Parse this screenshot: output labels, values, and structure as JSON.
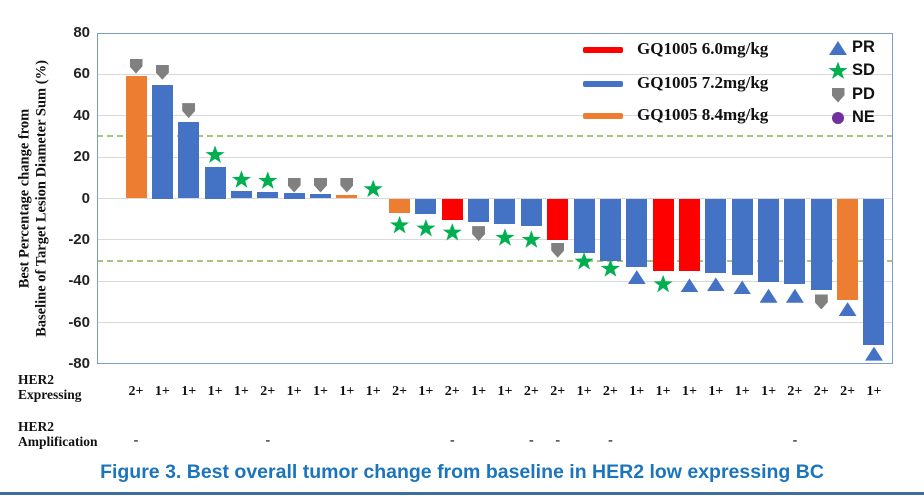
{
  "figure_caption": "Figure 3. Best overall tumor change from baseline in HER2 low expressing BC",
  "y_axis": {
    "title_line1": "Best Percentage change from",
    "title_line2": "Baseline of Target Lesion Diameter Sum (%)",
    "ticks": [
      80,
      60,
      40,
      20,
      0,
      -20,
      -40,
      -60,
      -80
    ],
    "min": -80,
    "max": 80
  },
  "legend": {
    "doses": [
      {
        "label": "GQ1005 6.0mg/kg",
        "color": "#FF0000"
      },
      {
        "label": "GQ1005 7.2mg/kg",
        "color": "#4472C4"
      },
      {
        "label": "GQ1005 8.4mg/kg",
        "color": "#ED7D31"
      }
    ],
    "responses": [
      {
        "label": "PR",
        "marker": "triangle-up",
        "color": "#4472C4"
      },
      {
        "label": "SD",
        "marker": "star",
        "color": "#00B050"
      },
      {
        "label": "PD",
        "marker": "pentagon-down",
        "color": "#808080"
      },
      {
        "label": "NE",
        "marker": "circle",
        "color": "#7030A0"
      }
    ]
  },
  "x_axis_rows": {
    "expressing_header_line1": "HER2",
    "expressing_header_line2": "Expressing",
    "amplification_header_line1": "HER2",
    "amplification_header_line2": "Amplification"
  },
  "styles": {
    "reference_line_color": "#A9C47F",
    "gridline_color": "#D9D9D9",
    "plot_border_color": "#7E9CC9",
    "caption_color": "#1C75BC",
    "divider_color": "#3E6D9E"
  },
  "chart_data": {
    "type": "bar",
    "title": "Best overall tumor change from baseline in HER2 low expressing BC",
    "xlabel": "",
    "ylabel": "Best Percentage change from Baseline of Target Lesion Diameter Sum (%)",
    "ylim": [
      -80,
      80
    ],
    "grid": true,
    "reference_lines": [
      30,
      -30
    ],
    "dose_colors": {
      "6.0mg/kg": "#FF0000",
      "7.2mg/kg": "#4472C4",
      "8.4mg/kg": "#ED7D31"
    },
    "response_markers": {
      "PR": "triangle-up",
      "SD": "star",
      "PD": "pentagon-down",
      "NE": "circle"
    },
    "patients": [
      {
        "her2_expressing": "2+",
        "her2_amplification": "-",
        "dose": "8.4mg/kg",
        "response": "PD",
        "value": 59,
        "marker_value": 64
      },
      {
        "her2_expressing": "1+",
        "her2_amplification": "",
        "dose": "7.2mg/kg",
        "response": "PD",
        "value": 55,
        "marker_value": 61
      },
      {
        "her2_expressing": "1+",
        "her2_amplification": "",
        "dose": "7.2mg/kg",
        "response": "PD",
        "value": 37,
        "marker_value": 42.5
      },
      {
        "her2_expressing": "1+",
        "her2_amplification": "",
        "dose": "7.2mg/kg",
        "response": "SD",
        "value": 15,
        "marker_value": 21
      },
      {
        "her2_expressing": "1+",
        "her2_amplification": "",
        "dose": "7.2mg/kg",
        "response": "SD",
        "value": 3.5,
        "marker_value": 9
      },
      {
        "her2_expressing": "2+",
        "her2_amplification": "-",
        "dose": "7.2mg/kg",
        "response": "SD",
        "value": 3,
        "marker_value": 8.5
      },
      {
        "her2_expressing": "1+",
        "her2_amplification": "",
        "dose": "7.2mg/kg",
        "response": "PD",
        "value": 2.5,
        "marker_value": 6.5
      },
      {
        "her2_expressing": "1+",
        "her2_amplification": "",
        "dose": "7.2mg/kg",
        "response": "PD",
        "value": 2,
        "marker_value": 6.5
      },
      {
        "her2_expressing": "1+",
        "her2_amplification": "",
        "dose": "8.4mg/kg",
        "response": "PD",
        "value": 1.5,
        "marker_value": 6.5
      },
      {
        "her2_expressing": "1+",
        "her2_amplification": "",
        "dose": "7.2mg/kg",
        "response": "SD",
        "value": 0,
        "marker_value": 4.5
      },
      {
        "her2_expressing": "2+",
        "her2_amplification": "",
        "dose": "8.4mg/kg",
        "response": "SD",
        "value": -7,
        "marker_value": -13
      },
      {
        "her2_expressing": "1+",
        "her2_amplification": "",
        "dose": "7.2mg/kg",
        "response": "SD",
        "value": -7.5,
        "marker_value": -14.5
      },
      {
        "her2_expressing": "2+",
        "her2_amplification": "-",
        "dose": "6.0mg/kg",
        "response": "SD",
        "value": -10.5,
        "marker_value": -16.5
      },
      {
        "her2_expressing": "1+",
        "her2_amplification": "",
        "dose": "7.2mg/kg",
        "response": "PD",
        "value": -11.5,
        "marker_value": -17
      },
      {
        "her2_expressing": "1+",
        "her2_amplification": "",
        "dose": "7.2mg/kg",
        "response": "SD",
        "value": -12.5,
        "marker_value": -19
      },
      {
        "her2_expressing": "2+",
        "her2_amplification": "-",
        "dose": "7.2mg/kg",
        "response": "SD",
        "value": -13.5,
        "marker_value": -20
      },
      {
        "her2_expressing": "2+",
        "her2_amplification": "-",
        "dose": "6.0mg/kg",
        "response": "PD",
        "value": -20,
        "marker_value": -25
      },
      {
        "her2_expressing": "1+",
        "her2_amplification": "",
        "dose": "7.2mg/kg",
        "response": "SD",
        "value": -26.5,
        "marker_value": -30.5
      },
      {
        "her2_expressing": "2+",
        "her2_amplification": "-",
        "dose": "7.2mg/kg",
        "response": "SD",
        "value": -30,
        "marker_value": -34
      },
      {
        "her2_expressing": "1+",
        "her2_amplification": "",
        "dose": "7.2mg/kg",
        "response": "PR",
        "value": -33,
        "marker_value": -38
      },
      {
        "her2_expressing": "1+",
        "her2_amplification": "",
        "dose": "6.0mg/kg",
        "response": "SD",
        "value": -35,
        "marker_value": -41.5
      },
      {
        "her2_expressing": "1+",
        "her2_amplification": "",
        "dose": "6.0mg/kg",
        "response": "PR",
        "value": -35,
        "marker_value": -42
      },
      {
        "her2_expressing": "1+",
        "her2_amplification": "",
        "dose": "7.2mg/kg",
        "response": "PR",
        "value": -36,
        "marker_value": -41.5
      },
      {
        "her2_expressing": "1+",
        "her2_amplification": "",
        "dose": "7.2mg/kg",
        "response": "PR",
        "value": -37,
        "marker_value": -43
      },
      {
        "her2_expressing": "1+",
        "her2_amplification": "",
        "dose": "7.2mg/kg",
        "response": "PR",
        "value": -40.5,
        "marker_value": -47
      },
      {
        "her2_expressing": "2+",
        "her2_amplification": "-",
        "dose": "7.2mg/kg",
        "response": "PR",
        "value": -41.5,
        "marker_value": -47
      },
      {
        "her2_expressing": "2+",
        "her2_amplification": "",
        "dose": "7.2mg/kg",
        "response": "PD",
        "value": -44,
        "marker_value": -50
      },
      {
        "her2_expressing": "2+",
        "her2_amplification": "",
        "dose": "8.4mg/kg",
        "response": "PR",
        "value": -49,
        "marker_value": -53.5
      },
      {
        "her2_expressing": "1+",
        "her2_amplification": "",
        "dose": "7.2mg/kg",
        "response": "PR",
        "value": -71,
        "marker_value": -75
      }
    ]
  }
}
